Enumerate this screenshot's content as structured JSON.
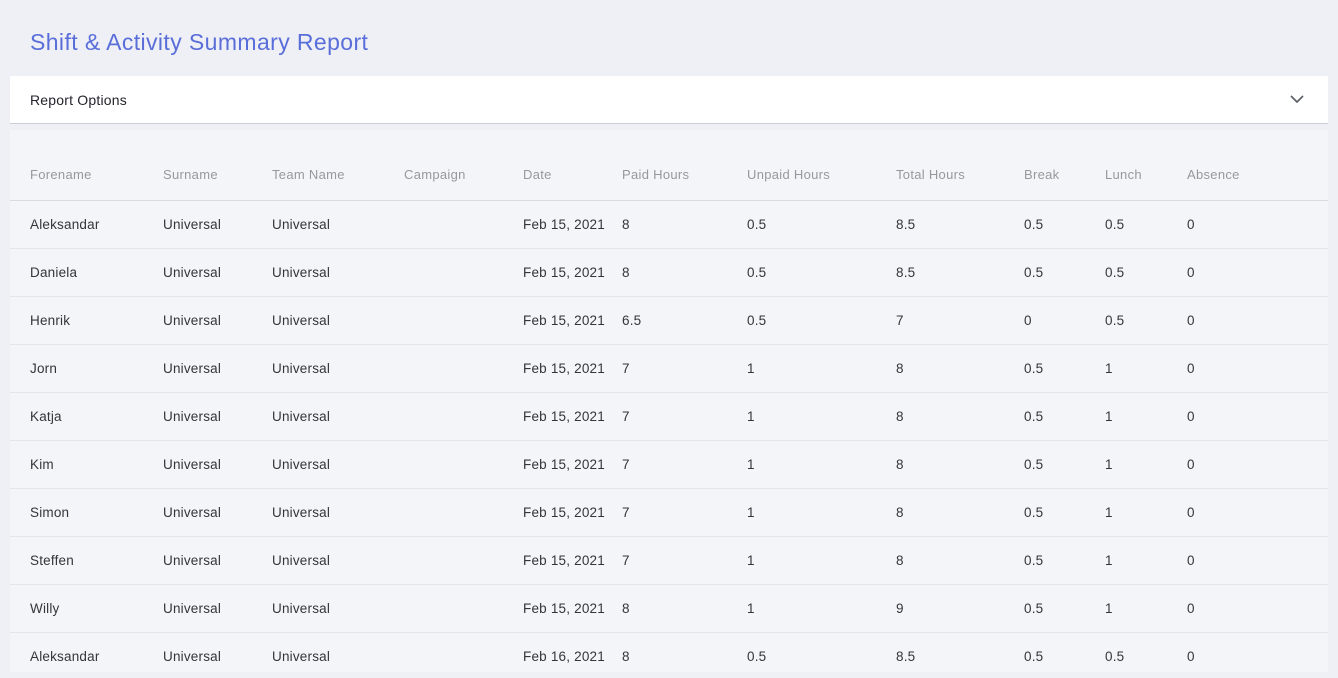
{
  "page": {
    "title": "Shift & Activity Summary Report",
    "accent_color": "#5a6ed9",
    "background_color": "#eff0f6"
  },
  "report_options": {
    "label": "Report Options",
    "icon": "chevron-down-icon",
    "state": "collapsed"
  },
  "table": {
    "columns": [
      "Forename",
      "Surname",
      "Team Name",
      "Campaign",
      "Date",
      "Paid Hours",
      "Unpaid Hours",
      "Total Hours",
      "Break",
      "Lunch",
      "Absence"
    ],
    "rows": [
      [
        "Aleksandar",
        "Universal",
        "Universal",
        "",
        "Feb 15, 2021",
        "8",
        "0.5",
        "8.5",
        "0.5",
        "0.5",
        "0"
      ],
      [
        "Daniela",
        "Universal",
        "Universal",
        "",
        "Feb 15, 2021",
        "8",
        "0.5",
        "8.5",
        "0.5",
        "0.5",
        "0"
      ],
      [
        "Henrik",
        "Universal",
        "Universal",
        "",
        "Feb 15, 2021",
        "6.5",
        "0.5",
        "7",
        "0",
        "0.5",
        "0"
      ],
      [
        "Jorn",
        "Universal",
        "Universal",
        "",
        "Feb 15, 2021",
        "7",
        "1",
        "8",
        "0.5",
        "1",
        "0"
      ],
      [
        "Katja",
        "Universal",
        "Universal",
        "",
        "Feb 15, 2021",
        "7",
        "1",
        "8",
        "0.5",
        "1",
        "0"
      ],
      [
        "Kim",
        "Universal",
        "Universal",
        "",
        "Feb 15, 2021",
        "7",
        "1",
        "8",
        "0.5",
        "1",
        "0"
      ],
      [
        "Simon",
        "Universal",
        "Universal",
        "",
        "Feb 15, 2021",
        "7",
        "1",
        "8",
        "0.5",
        "1",
        "0"
      ],
      [
        "Steffen",
        "Universal",
        "Universal",
        "",
        "Feb 15, 2021",
        "7",
        "1",
        "8",
        "0.5",
        "1",
        "0"
      ],
      [
        "Willy",
        "Universal",
        "Universal",
        "",
        "Feb 15, 2021",
        "8",
        "1",
        "9",
        "0.5",
        "1",
        "0"
      ],
      [
        "Aleksandar",
        "Universal",
        "Universal",
        "",
        "Feb 16, 2021",
        "8",
        "0.5",
        "8.5",
        "0.5",
        "0.5",
        "0"
      ]
    ]
  }
}
